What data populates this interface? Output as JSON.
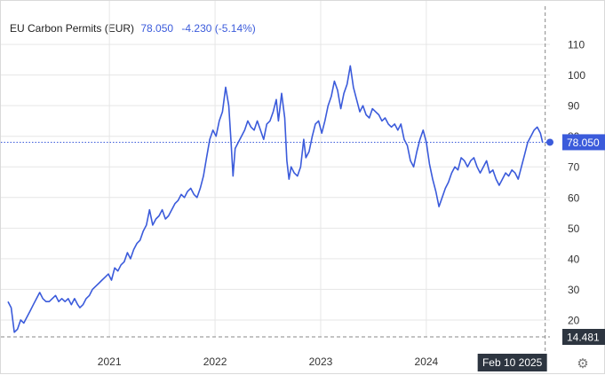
{
  "header": {
    "title": "EU Carbon Permits (EUR)",
    "price": "78.050",
    "change": "-4.230 (-5.14%)"
  },
  "markers": {
    "last_value_label": "78.050",
    "crosshair_value_label": "14.481",
    "crosshair_date_label": "Feb 10 2025"
  },
  "colors": {
    "line": "#3b5bdb",
    "grid": "#e6e6e6",
    "axis_text": "#333333",
    "label_bg_blue": "#3b5bdb",
    "label_bg_dark": "#2d3540"
  },
  "icons": {
    "settings": "gear-icon"
  },
  "chart_data": {
    "type": "line",
    "title": "EU Carbon Permits (EUR)",
    "xlabel": "",
    "ylabel": "",
    "grid": true,
    "ylim": [
      14.481,
      119
    ],
    "yticks": [
      20,
      30,
      40,
      50,
      60,
      70,
      80,
      90,
      100,
      110
    ],
    "xticks": [
      {
        "label": "2021",
        "x": 2021.0
      },
      {
        "label": "2022",
        "x": 2022.0
      },
      {
        "label": "2023",
        "x": 2023.0
      },
      {
        "label": "2024",
        "x": 2024.0
      }
    ],
    "xlim": [
      2020.04,
      2025.17
    ],
    "series": [
      {
        "name": "EU Carbon Permits",
        "points": [
          [
            2020.04,
            26
          ],
          [
            2020.07,
            24
          ],
          [
            2020.1,
            16
          ],
          [
            2020.13,
            17
          ],
          [
            2020.16,
            20
          ],
          [
            2020.19,
            19
          ],
          [
            2020.22,
            21
          ],
          [
            2020.25,
            23
          ],
          [
            2020.28,
            25
          ],
          [
            2020.31,
            27
          ],
          [
            2020.34,
            29
          ],
          [
            2020.37,
            27
          ],
          [
            2020.4,
            26
          ],
          [
            2020.43,
            26
          ],
          [
            2020.46,
            27
          ],
          [
            2020.49,
            28
          ],
          [
            2020.52,
            26
          ],
          [
            2020.55,
            27
          ],
          [
            2020.58,
            26
          ],
          [
            2020.61,
            27
          ],
          [
            2020.64,
            25
          ],
          [
            2020.67,
            27
          ],
          [
            2020.7,
            25
          ],
          [
            2020.72,
            24
          ],
          [
            2020.75,
            25
          ],
          [
            2020.78,
            27
          ],
          [
            2020.81,
            28
          ],
          [
            2020.84,
            30
          ],
          [
            2020.87,
            31
          ],
          [
            2020.9,
            32
          ],
          [
            2020.93,
            33
          ],
          [
            2020.96,
            34
          ],
          [
            2020.99,
            35
          ],
          [
            2021.02,
            33
          ],
          [
            2021.05,
            37
          ],
          [
            2021.08,
            36
          ],
          [
            2021.11,
            38
          ],
          [
            2021.14,
            39
          ],
          [
            2021.17,
            42
          ],
          [
            2021.2,
            40
          ],
          [
            2021.23,
            43
          ],
          [
            2021.26,
            45
          ],
          [
            2021.29,
            46
          ],
          [
            2021.32,
            49
          ],
          [
            2021.35,
            51
          ],
          [
            2021.38,
            56
          ],
          [
            2021.41,
            51
          ],
          [
            2021.44,
            53
          ],
          [
            2021.47,
            54
          ],
          [
            2021.5,
            56
          ],
          [
            2021.53,
            53
          ],
          [
            2021.56,
            54
          ],
          [
            2021.59,
            56
          ],
          [
            2021.62,
            58
          ],
          [
            2021.65,
            59
          ],
          [
            2021.68,
            61
          ],
          [
            2021.71,
            60
          ],
          [
            2021.74,
            62
          ],
          [
            2021.77,
            63
          ],
          [
            2021.8,
            61
          ],
          [
            2021.83,
            60
          ],
          [
            2021.86,
            63
          ],
          [
            2021.89,
            67
          ],
          [
            2021.92,
            73
          ],
          [
            2021.95,
            79
          ],
          [
            2021.98,
            82
          ],
          [
            2022.01,
            80
          ],
          [
            2022.04,
            85
          ],
          [
            2022.07,
            88
          ],
          [
            2022.1,
            96
          ],
          [
            2022.13,
            90
          ],
          [
            2022.15,
            79
          ],
          [
            2022.17,
            67
          ],
          [
            2022.19,
            76
          ],
          [
            2022.22,
            78
          ],
          [
            2022.25,
            80
          ],
          [
            2022.28,
            82
          ],
          [
            2022.31,
            85
          ],
          [
            2022.34,
            83
          ],
          [
            2022.37,
            82
          ],
          [
            2022.4,
            85
          ],
          [
            2022.43,
            82
          ],
          [
            2022.46,
            79
          ],
          [
            2022.49,
            84
          ],
          [
            2022.52,
            85
          ],
          [
            2022.55,
            88
          ],
          [
            2022.58,
            92
          ],
          [
            2022.6,
            85
          ],
          [
            2022.63,
            94
          ],
          [
            2022.66,
            86
          ],
          [
            2022.68,
            72
          ],
          [
            2022.7,
            66
          ],
          [
            2022.72,
            70
          ],
          [
            2022.75,
            68
          ],
          [
            2022.78,
            67
          ],
          [
            2022.81,
            70
          ],
          [
            2022.84,
            79
          ],
          [
            2022.86,
            73
          ],
          [
            2022.89,
            75
          ],
          [
            2022.92,
            80
          ],
          [
            2022.95,
            84
          ],
          [
            2022.98,
            85
          ],
          [
            2023.01,
            81
          ],
          [
            2023.04,
            85
          ],
          [
            2023.07,
            90
          ],
          [
            2023.1,
            93
          ],
          [
            2023.13,
            98
          ],
          [
            2023.16,
            95
          ],
          [
            2023.19,
            89
          ],
          [
            2023.22,
            94
          ],
          [
            2023.25,
            97
          ],
          [
            2023.28,
            103
          ],
          [
            2023.31,
            96
          ],
          [
            2023.34,
            92
          ],
          [
            2023.37,
            88
          ],
          [
            2023.4,
            90
          ],
          [
            2023.43,
            87
          ],
          [
            2023.46,
            86
          ],
          [
            2023.49,
            89
          ],
          [
            2023.52,
            88
          ],
          [
            2023.55,
            87
          ],
          [
            2023.58,
            85
          ],
          [
            2023.61,
            86
          ],
          [
            2023.64,
            84
          ],
          [
            2023.67,
            83
          ],
          [
            2023.7,
            84
          ],
          [
            2023.73,
            82
          ],
          [
            2023.76,
            84
          ],
          [
            2023.79,
            79
          ],
          [
            2023.82,
            77
          ],
          [
            2023.85,
            72
          ],
          [
            2023.88,
            70
          ],
          [
            2023.91,
            75
          ],
          [
            2023.94,
            79
          ],
          [
            2023.97,
            82
          ],
          [
            2024.0,
            78
          ],
          [
            2024.03,
            71
          ],
          [
            2024.06,
            66
          ],
          [
            2024.09,
            62
          ],
          [
            2024.12,
            57
          ],
          [
            2024.15,
            60
          ],
          [
            2024.18,
            63
          ],
          [
            2024.21,
            65
          ],
          [
            2024.24,
            68
          ],
          [
            2024.27,
            70
          ],
          [
            2024.3,
            69
          ],
          [
            2024.33,
            73
          ],
          [
            2024.36,
            72
          ],
          [
            2024.39,
            70
          ],
          [
            2024.42,
            72
          ],
          [
            2024.45,
            73
          ],
          [
            2024.48,
            70
          ],
          [
            2024.51,
            68
          ],
          [
            2024.54,
            70
          ],
          [
            2024.57,
            72
          ],
          [
            2024.6,
            68
          ],
          [
            2024.63,
            69
          ],
          [
            2024.66,
            66
          ],
          [
            2024.69,
            64
          ],
          [
            2024.72,
            66
          ],
          [
            2024.75,
            68
          ],
          [
            2024.78,
            67
          ],
          [
            2024.81,
            69
          ],
          [
            2024.84,
            68
          ],
          [
            2024.87,
            66
          ],
          [
            2024.9,
            70
          ],
          [
            2024.93,
            74
          ],
          [
            2024.96,
            78
          ],
          [
            2024.99,
            80
          ],
          [
            2025.02,
            82
          ],
          [
            2025.05,
            83
          ],
          [
            2025.08,
            81
          ],
          [
            2025.1,
            78.05
          ]
        ]
      }
    ],
    "last_value": 78.05,
    "legend": "none"
  }
}
